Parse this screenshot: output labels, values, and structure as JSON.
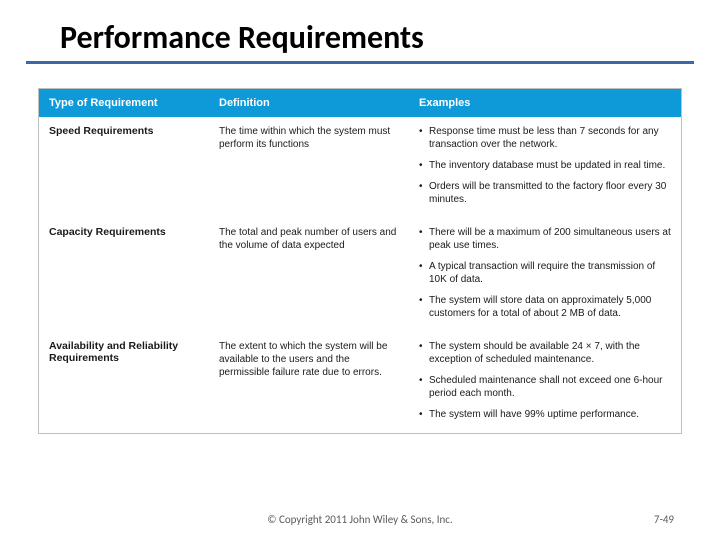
{
  "title": "Performance Requirements",
  "table": {
    "header_bg": "#0e9ad8",
    "columns": [
      "Type of Requirement",
      "Definition",
      "Examples"
    ],
    "rows": [
      {
        "type": "Speed Requirements",
        "definition": "The time within which the system must perform its functions",
        "examples": [
          "Response time must be less than 7 seconds for any transaction over the network.",
          "The inventory database must be updated in real time.",
          "Orders will be transmitted to the factory floor every 30 minutes."
        ]
      },
      {
        "type": "Capacity Requirements",
        "definition": "The total and peak number of users and the volume of data expected",
        "examples": [
          "There will be a maximum of 200 simultaneous users at peak use times.",
          "A typical transaction will require the transmission of 10K of data.",
          "The system will store data on approximately 5,000 customers for a total of about 2 MB of data."
        ]
      },
      {
        "type": "Availability and Reliability Requirements",
        "definition": "The extent to which the system will be available to the users and the permissible failure rate due to errors.",
        "examples": [
          "The system should be available 24 × 7, with the exception of scheduled maintenance.",
          "Scheduled maintenance shall not exceed one 6-hour period each month.",
          "The system will have 99% uptime performance."
        ]
      }
    ]
  },
  "footer": {
    "copyright": "© Copyright 2011 John Wiley & Sons, Inc.",
    "pagenum": "7-49"
  }
}
